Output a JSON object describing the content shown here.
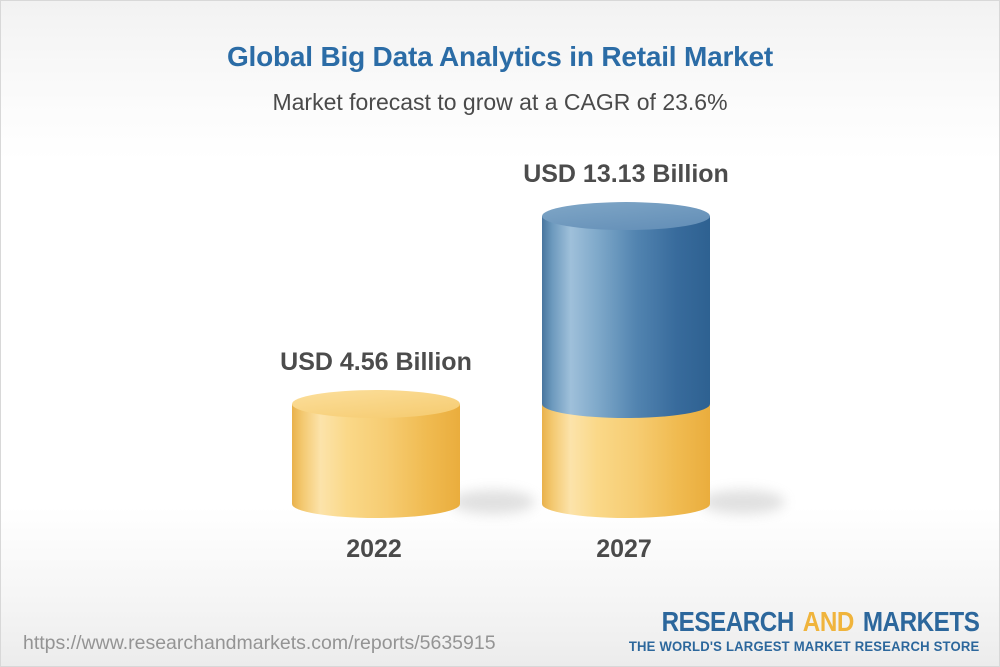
{
  "header": {
    "title": "Global Big Data Analytics in Retail Market",
    "subtitle": "Market forecast to grow at a CAGR of 23.6%"
  },
  "chart_data": {
    "type": "bar",
    "variant": "3d-cylinder-stacked",
    "categories": [
      "2022",
      "2027"
    ],
    "values": [
      4.56,
      13.13
    ],
    "value_labels": [
      "USD 4.56 Billion",
      "USD 13.13 Billion"
    ],
    "unit": "USD Billion",
    "cagr_percent": 23.6,
    "title": "Global Big Data Analytics in Retail Market",
    "subtitle": "Market forecast to grow at a CAGR of 23.6%",
    "legend": "none",
    "axes": "none",
    "grid": false,
    "colors": {
      "base_segment_yellow": "#f6cc72",
      "growth_segment_blue": "#5284b0"
    }
  },
  "footer": {
    "url": "https://www.researchandmarkets.com/reports/5635915",
    "logo": {
      "word1": "RESEARCH",
      "word2": "AND",
      "word3": "MARKETS",
      "tagline": "THE WORLD'S LARGEST MARKET RESEARCH STORE"
    }
  },
  "colors": {
    "title_blue": "#2b6ca6",
    "text_dark": "#4c4c4c",
    "url_gray": "#949494",
    "logo_blue": "#2c679c",
    "logo_gold": "#f0b43c"
  }
}
